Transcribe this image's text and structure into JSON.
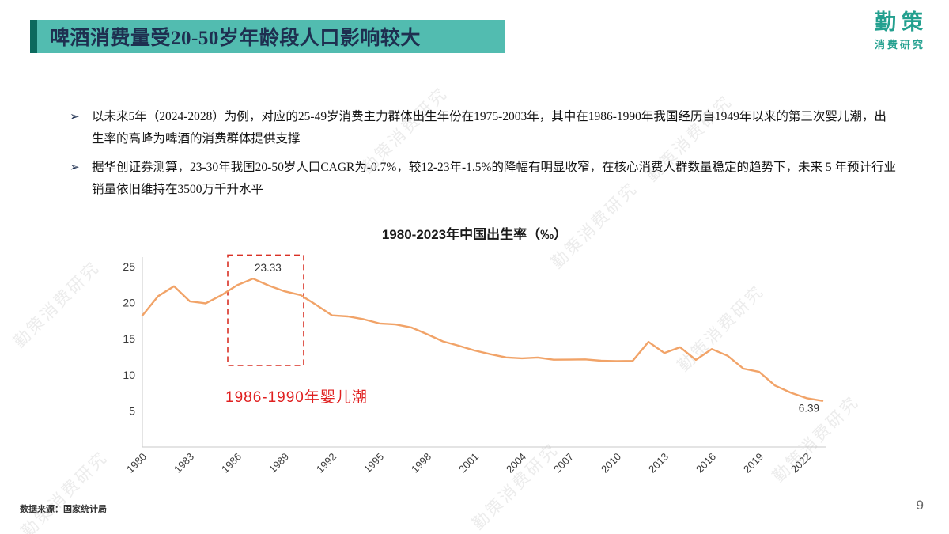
{
  "header": {
    "title": "啤酒消费量受20-50岁年龄段人口影响较大",
    "logo_name": "勤策",
    "logo_subtitle": "消费研究"
  },
  "bullets": [
    {
      "marker": "➢",
      "text": "以未来5年（2024-2028）为例，对应的25-49岁消费主力群体出生年份在1975-2003年，其中在1986-1990年我国经历自1949年以来的第三次婴儿潮，出生率的高峰为啤酒的消费群体提供支撑"
    },
    {
      "marker": "➢",
      "text": "据华创证券测算，23-30年我国20-50岁人口CAGR为-0.7%，较12-23年-1.5%的降幅有明显收窄，在核心消费人群数量稳定的趋势下，未来 5 年预计行业销量依旧维持在3500万千升水平"
    }
  ],
  "chart_data": {
    "type": "line",
    "title": "1980-2023年中国出生率（‰）",
    "x": [
      1980,
      1981,
      1982,
      1983,
      1984,
      1985,
      1986,
      1987,
      1988,
      1989,
      1990,
      1991,
      1992,
      1993,
      1994,
      1995,
      1996,
      1997,
      1998,
      1999,
      2000,
      2001,
      2002,
      2003,
      2004,
      2005,
      2006,
      2007,
      2008,
      2009,
      2010,
      2011,
      2012,
      2013,
      2014,
      2015,
      2016,
      2017,
      2018,
      2019,
      2020,
      2021,
      2022,
      2023
    ],
    "series": [
      {
        "name": "中国出生率(‰)",
        "values": [
          18.21,
          20.91,
          22.28,
          20.19,
          19.9,
          21.04,
          22.43,
          23.33,
          22.37,
          21.58,
          21.06,
          19.68,
          18.24,
          18.09,
          17.7,
          17.12,
          16.98,
          16.57,
          15.64,
          14.64,
          14.03,
          13.38,
          12.86,
          12.41,
          12.29,
          12.4,
          12.09,
          12.1,
          12.14,
          11.95,
          11.9,
          11.93,
          14.57,
          13.03,
          13.83,
          12.07,
          13.57,
          12.64,
          10.86,
          10.41,
          8.52,
          7.52,
          6.77,
          6.39
        ]
      }
    ],
    "ylim": [
      0,
      25
    ],
    "yticks": [
      5,
      10,
      15,
      20,
      25
    ],
    "xticks": [
      1980,
      1983,
      1986,
      1989,
      1992,
      1995,
      1998,
      2001,
      2004,
      2007,
      2010,
      2013,
      2016,
      2019,
      2022
    ],
    "grid": false,
    "legend": false,
    "line_color": "#f1a368",
    "axis_color": "#c8c8c8",
    "annotations": {
      "peak_label": "23.33",
      "peak_year": 1987,
      "peak_value": 23.33,
      "end_label": "6.39",
      "end_year": 2023,
      "end_value": 6.39,
      "highlight_label": "1986-1990年婴儿潮",
      "highlight_label_color": "#e02020",
      "highlight_box": {
        "year_start": 1985.4,
        "year_end": 1990.2,
        "value_top": 26.6,
        "value_bottom": 11.3
      },
      "box_color": "#d93025"
    }
  },
  "footer": {
    "source": "数据来源：国家统计局",
    "page_number": "9"
  },
  "watermark": {
    "text": "勤策消费研究"
  },
  "colors": {
    "accent_teal": "#52bcb0",
    "accent_teal_dark": "#0c6a5e",
    "logo_teal": "#23a08f",
    "title_text": "#1e2f50",
    "line_orange": "#f1a368",
    "annotation_red": "#e02020"
  }
}
